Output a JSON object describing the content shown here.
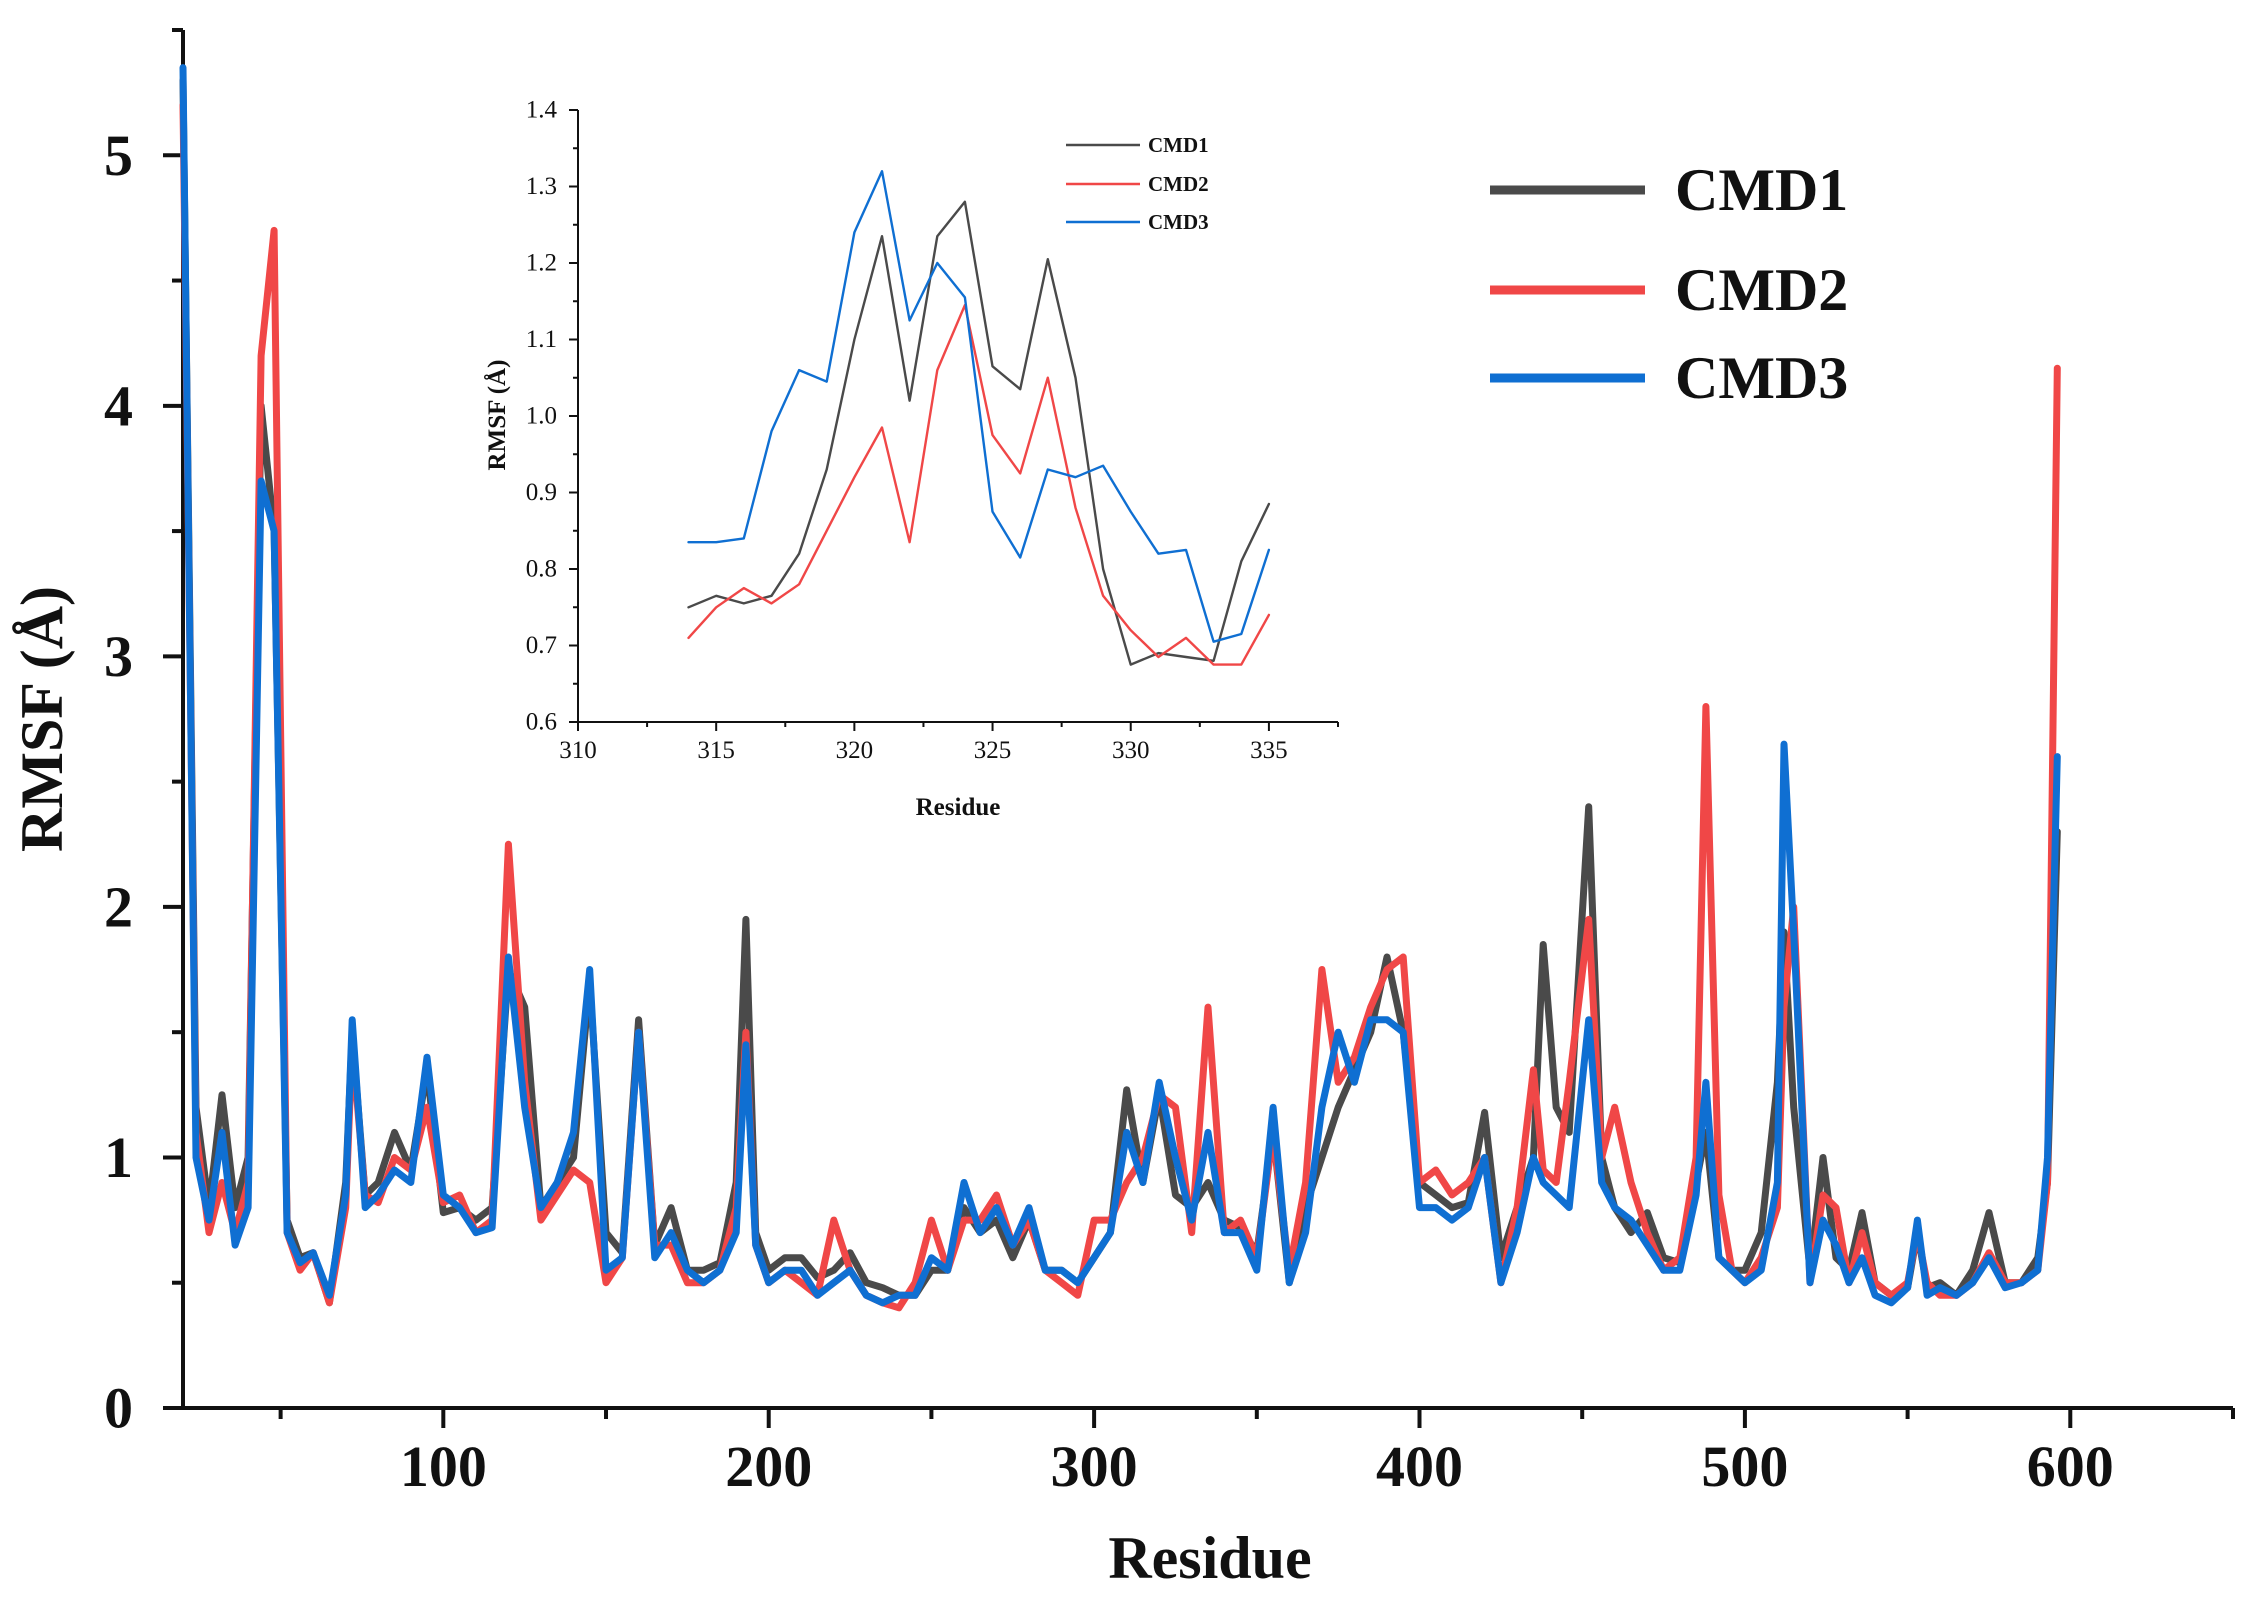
{
  "chart_data": [
    {
      "id": "main",
      "type": "line",
      "title": "",
      "xlabel": "Residue",
      "ylabel": "RMSF (Å)",
      "xlim": [
        20,
        650
      ],
      "ylim": [
        0,
        5.5
      ],
      "xticks": [
        100,
        200,
        300,
        400,
        500,
        600
      ],
      "xtick_labels": [
        "100",
        "200",
        "300",
        "400",
        "500",
        "600"
      ],
      "yticks": [
        0,
        1,
        2,
        3,
        4,
        5
      ],
      "ytick_labels": [
        "0",
        "1",
        "2",
        "3",
        "4",
        "5"
      ],
      "legend_position": "top-right",
      "x": [
        20,
        24,
        28,
        32,
        36,
        40,
        44,
        48,
        52,
        56,
        60,
        65,
        70,
        72,
        76,
        80,
        85,
        90,
        95,
        100,
        105,
        110,
        115,
        120,
        125,
        130,
        135,
        140,
        145,
        150,
        155,
        160,
        165,
        170,
        175,
        180,
        185,
        190,
        193,
        196,
        200,
        205,
        210,
        215,
        220,
        225,
        230,
        235,
        240,
        245,
        250,
        255,
        260,
        265,
        270,
        275,
        280,
        285,
        290,
        295,
        300,
        305,
        310,
        315,
        320,
        325,
        330,
        335,
        340,
        345,
        350,
        355,
        360,
        365,
        370,
        375,
        380,
        385,
        390,
        395,
        400,
        405,
        410,
        415,
        420,
        425,
        430,
        435,
        438,
        442,
        446,
        452,
        456,
        460,
        465,
        470,
        475,
        480,
        485,
        488,
        492,
        496,
        500,
        505,
        510,
        512,
        515,
        520,
        524,
        528,
        532,
        536,
        540,
        545,
        550,
        553,
        556,
        560,
        565,
        570,
        575,
        580,
        585,
        590,
        593,
        596
      ],
      "series": [
        {
          "name": "CMD1",
          "color": "#4a4a4a",
          "values": [
            5.3,
            1.2,
            0.8,
            1.25,
            0.8,
            1.0,
            4.0,
            3.5,
            0.75,
            0.6,
            0.62,
            0.42,
            0.9,
            1.5,
            0.85,
            0.9,
            1.1,
            0.95,
            1.35,
            0.78,
            0.8,
            0.75,
            0.8,
            1.75,
            1.6,
            0.8,
            0.9,
            1.0,
            1.7,
            0.7,
            0.62,
            1.55,
            0.65,
            0.8,
            0.55,
            0.55,
            0.58,
            0.9,
            1.95,
            0.7,
            0.55,
            0.6,
            0.6,
            0.52,
            0.55,
            0.62,
            0.5,
            0.48,
            0.45,
            0.45,
            0.55,
            0.55,
            0.8,
            0.7,
            0.75,
            0.6,
            0.75,
            0.55,
            0.55,
            0.5,
            0.6,
            0.7,
            1.27,
            0.9,
            1.25,
            0.85,
            0.8,
            0.9,
            0.75,
            0.72,
            0.62,
            1.1,
            0.5,
            0.8,
            1.0,
            1.2,
            1.35,
            1.5,
            1.8,
            1.5,
            0.9,
            0.85,
            0.8,
            0.82,
            1.18,
            0.6,
            0.8,
            1.0,
            1.85,
            1.2,
            1.1,
            2.4,
            1.0,
            0.8,
            0.7,
            0.78,
            0.6,
            0.58,
            0.9,
            1.1,
            0.6,
            0.55,
            0.55,
            0.7,
            1.3,
            1.9,
            1.2,
            0.55,
            1.0,
            0.6,
            0.55,
            0.78,
            0.5,
            0.45,
            0.48,
            0.7,
            0.48,
            0.5,
            0.45,
            0.55,
            0.78,
            0.5,
            0.5,
            0.6,
            0.9,
            2.3
          ]
        },
        {
          "name": "CMD2",
          "color": "#f04747",
          "values": [
            5.2,
            1.1,
            0.7,
            0.9,
            0.7,
            0.9,
            4.2,
            4.7,
            0.7,
            0.55,
            0.62,
            0.42,
            0.8,
            1.45,
            0.85,
            0.82,
            1.0,
            0.95,
            1.2,
            0.82,
            0.85,
            0.7,
            0.75,
            2.25,
            1.3,
            0.75,
            0.85,
            0.95,
            0.9,
            0.5,
            0.6,
            1.5,
            0.65,
            0.65,
            0.5,
            0.5,
            0.55,
            0.8,
            1.5,
            0.65,
            0.5,
            0.55,
            0.5,
            0.45,
            0.75,
            0.55,
            0.45,
            0.42,
            0.4,
            0.5,
            0.75,
            0.55,
            0.75,
            0.75,
            0.85,
            0.65,
            0.75,
            0.55,
            0.5,
            0.45,
            0.75,
            0.75,
            0.9,
            1.0,
            1.25,
            1.2,
            0.7,
            1.6,
            0.7,
            0.75,
            0.6,
            1.1,
            0.55,
            0.9,
            1.75,
            1.3,
            1.4,
            1.6,
            1.75,
            1.8,
            0.9,
            0.95,
            0.85,
            0.9,
            1.0,
            0.5,
            0.8,
            1.35,
            0.95,
            0.9,
            1.3,
            1.95,
            1.0,
            1.2,
            0.9,
            0.7,
            0.55,
            0.6,
            1.0,
            2.8,
            0.85,
            0.55,
            0.5,
            0.6,
            0.8,
            1.6,
            2.0,
            0.5,
            0.85,
            0.8,
            0.5,
            0.7,
            0.5,
            0.45,
            0.5,
            0.7,
            0.5,
            0.45,
            0.45,
            0.5,
            0.62,
            0.5,
            0.5,
            0.55,
            0.9,
            4.15
          ]
        },
        {
          "name": "CMD3",
          "color": "#0f6fd2",
          "values": [
            5.35,
            1.0,
            0.75,
            1.1,
            0.65,
            0.8,
            3.7,
            3.5,
            0.7,
            0.58,
            0.62,
            0.45,
            0.85,
            1.55,
            0.8,
            0.85,
            0.95,
            0.9,
            1.4,
            0.85,
            0.8,
            0.7,
            0.72,
            1.8,
            1.2,
            0.8,
            0.9,
            1.1,
            1.75,
            0.55,
            0.6,
            1.5,
            0.6,
            0.7,
            0.55,
            0.5,
            0.55,
            0.7,
            1.45,
            0.65,
            0.5,
            0.55,
            0.55,
            0.45,
            0.5,
            0.55,
            0.45,
            0.42,
            0.45,
            0.45,
            0.6,
            0.55,
            0.9,
            0.7,
            0.8,
            0.65,
            0.8,
            0.55,
            0.55,
            0.5,
            0.6,
            0.7,
            1.1,
            0.9,
            1.3,
            1.0,
            0.75,
            1.1,
            0.7,
            0.7,
            0.55,
            1.2,
            0.5,
            0.7,
            1.2,
            1.5,
            1.3,
            1.55,
            1.55,
            1.5,
            0.8,
            0.8,
            0.75,
            0.8,
            1.0,
            0.5,
            0.7,
            1.0,
            0.9,
            0.85,
            0.8,
            1.55,
            0.9,
            0.8,
            0.75,
            0.65,
            0.55,
            0.55,
            0.85,
            1.3,
            0.6,
            0.55,
            0.5,
            0.55,
            0.9,
            2.65,
            1.9,
            0.5,
            0.75,
            0.65,
            0.5,
            0.6,
            0.45,
            0.42,
            0.48,
            0.75,
            0.45,
            0.48,
            0.45,
            0.5,
            0.6,
            0.48,
            0.5,
            0.55,
            1.0,
            2.6
          ]
        }
      ]
    },
    {
      "id": "inset",
      "type": "line",
      "title": "",
      "xlabel": "Residue",
      "ylabel": "RMSF (Å)",
      "xlim": [
        310,
        337.5
      ],
      "ylim": [
        0.6,
        1.4
      ],
      "xticks": [
        310,
        315,
        320,
        325,
        330,
        335
      ],
      "xtick_labels": [
        "310",
        "315",
        "320",
        "325",
        "330",
        "335"
      ],
      "yticks": [
        0.6,
        0.7,
        0.8,
        0.9,
        1.0,
        1.1,
        1.2,
        1.3,
        1.4
      ],
      "ytick_labels": [
        "0.6",
        "0.7",
        "0.8",
        "0.9",
        "1.0",
        "1.1",
        "1.2",
        "1.3",
        "1.4"
      ],
      "legend_position": "top-center",
      "x": [
        314,
        315,
        316,
        317,
        318,
        319,
        320,
        321,
        322,
        323,
        324,
        325,
        326,
        327,
        328,
        329,
        330,
        331,
        332,
        333,
        334,
        335
      ],
      "series": [
        {
          "name": "CMD1",
          "color": "#4a4a4a",
          "values": [
            0.75,
            0.765,
            0.755,
            0.765,
            0.82,
            0.93,
            1.1,
            1.235,
            1.02,
            1.235,
            1.28,
            1.065,
            1.035,
            1.205,
            1.05,
            0.8,
            0.675,
            0.69,
            0.685,
            0.68,
            0.81,
            0.885
          ]
        },
        {
          "name": "CMD2",
          "color": "#f04747",
          "values": [
            0.71,
            0.75,
            0.775,
            0.755,
            0.78,
            0.85,
            0.92,
            0.985,
            0.835,
            1.06,
            1.145,
            0.975,
            0.925,
            1.05,
            0.88,
            0.765,
            0.72,
            0.685,
            0.71,
            0.675,
            0.675,
            0.74
          ]
        },
        {
          "name": "CMD3",
          "color": "#0f6fd2",
          "values": [
            0.835,
            0.835,
            0.84,
            0.98,
            1.06,
            1.045,
            1.24,
            1.32,
            1.125,
            1.2,
            1.155,
            0.875,
            0.815,
            0.93,
            0.92,
            0.935,
            0.875,
            0.82,
            0.825,
            0.705,
            0.715,
            0.825
          ]
        }
      ]
    }
  ]
}
